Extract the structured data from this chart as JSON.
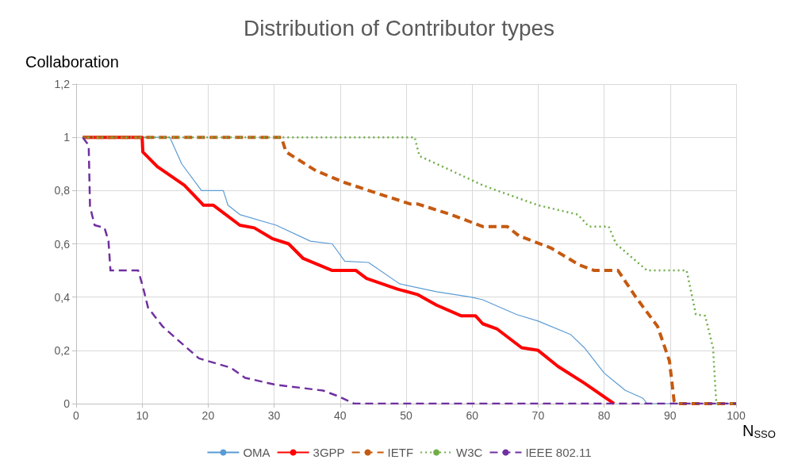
{
  "chart_data": {
    "type": "line",
    "title": "Distribution of Contributor types",
    "xlabel": "N$_{SSO}$",
    "ylabel": "Collaboration",
    "xlim": [
      0,
      100
    ],
    "xticks": [
      0,
      10,
      20,
      30,
      40,
      50,
      60,
      70,
      80,
      90,
      100
    ],
    "ylim": [
      0,
      1.2
    ],
    "yticks": [
      0,
      {
        "value": 0.2,
        "label": "0,2"
      },
      {
        "value": 0.4,
        "label": "0,4"
      },
      {
        "value": 0.6,
        "label": "0,6"
      },
      {
        "value": 0.8,
        "label": "0,8"
      },
      1,
      {
        "value": 1.2,
        "label": "1,2"
      }
    ],
    "grid": true,
    "legend": "bottom",
    "marker": "none",
    "series": [
      {
        "name": "OMA",
        "color": "#5b9bd5",
        "line_style": "solid",
        "x": [
          1,
          14.2,
          16,
          19,
          22.3,
          23,
          24.8,
          30.3,
          35.5,
          38.8,
          40.7,
          44.3,
          49,
          54.6,
          59.8,
          61.6,
          66.7,
          70,
          74.9,
          77,
          80,
          83.2,
          85.9,
          86.5,
          100
        ],
        "values": [
          1,
          1,
          0.9,
          0.8,
          0.8,
          0.745,
          0.71,
          0.67,
          0.61,
          0.6,
          0.535,
          0.53,
          0.45,
          0.42,
          0.4,
          0.39,
          0.335,
          0.31,
          0.26,
          0.21,
          0.115,
          0.05,
          0.02,
          0,
          0
        ]
      },
      {
        "name": "3GPP",
        "color": "#ff0000",
        "line_style": "solid",
        "x": [
          1,
          10,
          10.1,
          12.3,
          16.4,
          19.3,
          20.8,
          24.8,
          27,
          29.7,
          32.2,
          34.4,
          38.8,
          42.4,
          44,
          48.7,
          51.7,
          54.6,
          58.3,
          60.5,
          61.6,
          63.8,
          67.5,
          70,
          73,
          77,
          81.5
        ],
        "values": [
          1,
          1,
          0.945,
          0.89,
          0.82,
          0.745,
          0.745,
          0.67,
          0.66,
          0.62,
          0.6,
          0.545,
          0.5,
          0.5,
          0.47,
          0.43,
          0.41,
          0.37,
          0.33,
          0.33,
          0.3,
          0.28,
          0.21,
          0.2,
          0.14,
          0.077,
          0
        ]
      },
      {
        "name": "IETF",
        "color": "#c55a11",
        "line_style": "dashed",
        "x": [
          1,
          31.1,
          31.8,
          36.3,
          40.7,
          46.2,
          50.6,
          51.7,
          56.8,
          61.6,
          65.3,
          67.1,
          71.9,
          76.3,
          78.5,
          82.1,
          84.8,
          88.1,
          89.9,
          90.6,
          91,
          100
        ],
        "values": [
          1,
          1,
          0.945,
          0.875,
          0.83,
          0.785,
          0.75,
          0.75,
          0.71,
          0.665,
          0.665,
          0.63,
          0.585,
          0.52,
          0.5,
          0.5,
          0.4,
          0.29,
          0.16,
          0.01,
          0,
          0
        ]
      },
      {
        "name": "W3C",
        "color": "#70ad47",
        "line_style": "dotted",
        "x": [
          1,
          51.3,
          52,
          56.4,
          61.6,
          63.8,
          70,
          76,
          77.7,
          80.7,
          81.8,
          86.5,
          92.5,
          93.9,
          95.3,
          96.5,
          97,
          100
        ],
        "values": [
          1,
          1,
          0.93,
          0.88,
          0.82,
          0.8,
          0.745,
          0.71,
          0.665,
          0.665,
          0.6,
          0.5,
          0.5,
          0.335,
          0.33,
          0.21,
          0,
          0
        ]
      },
      {
        "name": "IEEE 802.11",
        "color": "#7030a0",
        "line_style": "dashed",
        "x": [
          1,
          1.9,
          2.1,
          2.8,
          4.3,
          4.9,
          5.2,
          9.4,
          10.1,
          10.9,
          13.1,
          14.9,
          18.6,
          23.4,
          25.6,
          30,
          37.4,
          39.9,
          42.1,
          100
        ],
        "values": [
          1,
          0.97,
          0.74,
          0.67,
          0.66,
          0.61,
          0.5,
          0.5,
          0.44,
          0.36,
          0.29,
          0.25,
          0.17,
          0.135,
          0.097,
          0.072,
          0.049,
          0.026,
          0,
          0
        ]
      }
    ]
  }
}
